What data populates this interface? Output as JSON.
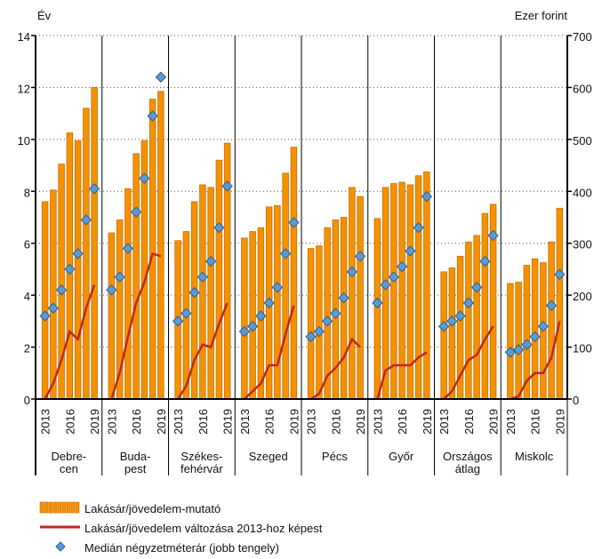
{
  "chart_data": {
    "type": "bar",
    "y_label": "Év",
    "y2_label": "Ezer forint",
    "ylim": [
      0,
      14
    ],
    "yticks": [
      0,
      2,
      4,
      6,
      8,
      10,
      12,
      14
    ],
    "y2lim": [
      0,
      700
    ],
    "y2ticks": [
      0,
      100,
      200,
      300,
      400,
      500,
      600,
      700
    ],
    "grid": true,
    "years": [
      "2013",
      null,
      null,
      "2016",
      null,
      null,
      "2019"
    ],
    "categories": [
      [
        "Debre-",
        "cen"
      ],
      [
        "Buda-",
        "pest"
      ],
      [
        "Székes-",
        "fehérvár"
      ],
      [
        "Szeged"
      ],
      [
        "Pécs"
      ],
      [
        "Győr"
      ],
      [
        "Országos",
        "átlag"
      ],
      [
        "Miskolc"
      ]
    ],
    "series": [
      {
        "name": "Lakásár/jövedelem-mutató",
        "type": "bar",
        "color": "#f39200",
        "values": [
          [
            7.6,
            8.05,
            9.05,
            10.25,
            9.95,
            11.2,
            12.0
          ],
          [
            6.4,
            6.9,
            8.1,
            9.45,
            9.95,
            11.55,
            11.85
          ],
          [
            6.1,
            6.45,
            7.6,
            8.25,
            8.15,
            9.2,
            9.85
          ],
          [
            6.2,
            6.45,
            6.6,
            7.4,
            7.45,
            8.7,
            9.7
          ],
          [
            5.8,
            5.9,
            6.6,
            6.9,
            7.0,
            8.15,
            7.8
          ],
          [
            6.95,
            8.15,
            8.3,
            8.35,
            8.25,
            8.6,
            8.75
          ],
          [
            4.9,
            5.05,
            5.5,
            6.05,
            6.3,
            7.15,
            7.5
          ],
          [
            4.45,
            4.5,
            5.15,
            5.4,
            5.25,
            6.05,
            7.35
          ]
        ]
      },
      {
        "name": "Lakásár/jövedelem változása 2013-hoz képest",
        "type": "line",
        "color": "#c0281e",
        "values": [
          [
            0,
            0.6,
            1.5,
            2.6,
            2.3,
            3.5,
            4.4
          ],
          [
            0,
            1.0,
            2.4,
            3.7,
            4.5,
            5.6,
            5.5
          ],
          [
            0,
            0.5,
            1.5,
            2.1,
            2.0,
            2.9,
            3.7
          ],
          [
            0,
            0.3,
            0.6,
            1.3,
            1.3,
            2.5,
            3.6
          ],
          [
            0,
            0.2,
            0.9,
            1.2,
            1.6,
            2.3,
            2.0
          ],
          [
            0,
            1.1,
            1.3,
            1.3,
            1.3,
            1.6,
            1.8
          ],
          [
            0,
            0.3,
            0.9,
            1.5,
            1.7,
            2.3,
            2.8
          ],
          [
            0,
            0.1,
            0.7,
            1.0,
            1.0,
            1.6,
            3.0
          ]
        ]
      },
      {
        "name": "Medián négyzetméterár (jobb tengely)",
        "type": "scatter",
        "axis": "y2",
        "color": "#5b9bd5",
        "values": [
          [
            160,
            175,
            210,
            250,
            280,
            345,
            405
          ],
          [
            210,
            235,
            290,
            360,
            425,
            545,
            620
          ],
          [
            150,
            165,
            205,
            235,
            265,
            330,
            410
          ],
          [
            130,
            140,
            160,
            185,
            215,
            280,
            340
          ],
          [
            120,
            130,
            150,
            165,
            195,
            245,
            275
          ],
          [
            185,
            220,
            235,
            255,
            285,
            330,
            390
          ],
          [
            140,
            150,
            160,
            185,
            215,
            265,
            315
          ],
          [
            90,
            95,
            105,
            120,
            140,
            180,
            240
          ]
        ]
      }
    ]
  }
}
